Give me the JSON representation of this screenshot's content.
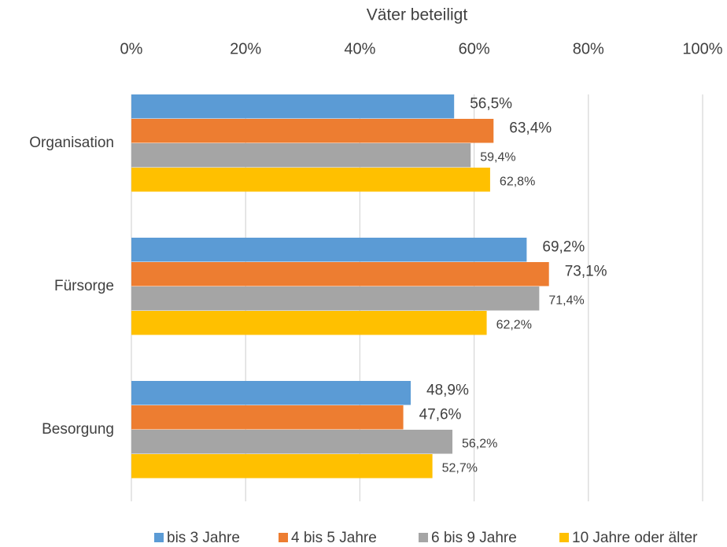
{
  "chart_data": {
    "type": "barh",
    "xlabel": "Väter beteiligt",
    "categories": [
      "Organisation",
      "Fürsorge",
      "Besorgung"
    ],
    "series": [
      {
        "name": "bis 3 Jahre",
        "color": "#5b9bd5",
        "values": [
          56.5,
          69.2,
          48.9
        ],
        "value_labels": [
          "56,5%",
          "69,2%",
          "48,9%"
        ]
      },
      {
        "name": "4 bis 5 Jahre",
        "color": "#ed7d31",
        "values": [
          63.4,
          73.1,
          47.6
        ],
        "value_labels": [
          "63,4%",
          "73,1%",
          "47,6%"
        ]
      },
      {
        "name": "6 bis 9 Jahre",
        "color": "#a5a5a5",
        "values": [
          59.4,
          71.4,
          56.2
        ],
        "value_labels": [
          "59,4%",
          "71,4%",
          "56,2%"
        ]
      },
      {
        "name": "10 Jahre oder älter",
        "color": "#ffc000",
        "values": [
          62.8,
          62.2,
          52.7
        ],
        "value_labels": [
          "62,8%",
          "62,2%",
          "52,7%"
        ]
      }
    ],
    "xlim": [
      0,
      100
    ],
    "xticks": [
      {
        "value": 0,
        "label": "0%"
      },
      {
        "value": 20,
        "label": "20%"
      },
      {
        "value": 40,
        "label": "40%"
      },
      {
        "value": 60,
        "label": "60%"
      },
      {
        "value": 80,
        "label": "80%"
      },
      {
        "value": 100,
        "label": "100%"
      }
    ],
    "grid": true,
    "legend": "bottom"
  }
}
